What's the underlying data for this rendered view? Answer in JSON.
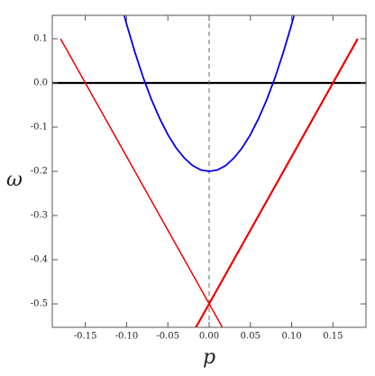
{
  "chart_data": {
    "type": "line",
    "xlabel": "p",
    "ylabel": "ω",
    "xlim": [
      -0.19,
      0.19
    ],
    "ylim": [
      -0.553,
      0.153
    ],
    "xticks": [
      {
        "value": -0.15,
        "label": "-0.15"
      },
      {
        "value": -0.1,
        "label": "-0.10"
      },
      {
        "value": -0.05,
        "label": "-0.05"
      },
      {
        "value": 0,
        "label": "0.00"
      },
      {
        "value": 0.05,
        "label": "0.05"
      },
      {
        "value": 0.1,
        "label": "0.10"
      },
      {
        "value": 0.15,
        "label": "0.15"
      }
    ],
    "yticks": [
      {
        "value": 0.1,
        "label": "0.1"
      },
      {
        "value": 0,
        "label": "0.0"
      },
      {
        "value": -0.1,
        "label": "-0.1"
      },
      {
        "value": -0.2,
        "label": "-0.2"
      },
      {
        "value": -0.3,
        "label": "-0.3"
      },
      {
        "value": -0.4,
        "label": "-0.4"
      },
      {
        "value": -0.5,
        "label": "-0.5"
      }
    ],
    "hline": 0,
    "vline": 0,
    "series": [
      {
        "color": "#0000ee",
        "width": 1.8,
        "x": [
          -0.103,
          -0.1,
          -0.09,
          -0.08,
          -0.07,
          -0.06,
          -0.05,
          -0.04,
          -0.03,
          -0.02,
          -0.01,
          0,
          0.01,
          0.02,
          0.03,
          0.04,
          0.05,
          0.06,
          0.07,
          0.08,
          0.09,
          0.1,
          0.103
        ],
        "values": [
          0.154,
          0.133,
          0.07,
          0.013,
          -0.037,
          -0.08,
          -0.117,
          -0.147,
          -0.17,
          -0.187,
          -0.197,
          -0.2,
          -0.197,
          -0.187,
          -0.17,
          -0.147,
          -0.117,
          -0.08,
          -0.037,
          0.013,
          0.07,
          0.133,
          0.154
        ]
      },
      {
        "color": "#ee0000",
        "width": 1.5,
        "x": [
          -0.18,
          0.016
        ],
        "values": [
          0.1,
          -0.553
        ]
      },
      {
        "color": "#ee0000",
        "width": 2.2,
        "x": [
          -0.016,
          0.18
        ],
        "values": [
          -0.553,
          0.1
        ]
      }
    ]
  }
}
